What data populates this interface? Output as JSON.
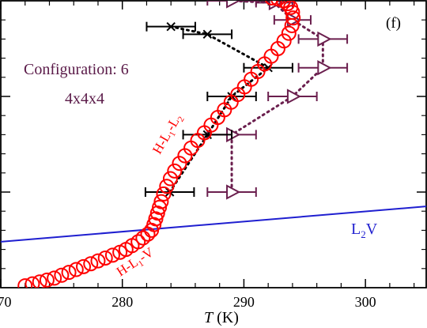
{
  "chart_data": {
    "type": "scatter",
    "panel_label": "(f)",
    "xlabel_italic": "T",
    "xlabel_unit": " (K)",
    "xlim": [
      270,
      305
    ],
    "ylim": [
      0,
      3
    ],
    "x_ticks": [
      270,
      280,
      290,
      300
    ],
    "y_major_ticks": [
      1,
      2
    ],
    "y_tick_labels_shown": false,
    "annotations": {
      "config_line1": "Configuration: 6",
      "config_line2": "4x4x4",
      "l2v": {
        "main": "L",
        "sub": "2",
        "tail": "V"
      },
      "hl1v": {
        "a": "H-L",
        "sub1": "1",
        "b": "-V"
      },
      "hl1l2": {
        "a": "H-L",
        "sub1": "1",
        "b": "-L",
        "sub2": "2"
      }
    },
    "colors": {
      "red_series": "#ff0000",
      "blue_line": "#1f1fd0",
      "black_series": "#000000",
      "purple_series": "#6b1f4e",
      "config_text": "#5a1a48",
      "axis": "#000000"
    },
    "series": [
      {
        "marker": "open-circle",
        "color": "#ff0000",
        "points": [
          [
            272.0,
            0.02
          ],
          [
            272.6,
            0.04
          ],
          [
            273.2,
            0.06
          ],
          [
            273.8,
            0.08
          ],
          [
            274.4,
            0.1
          ],
          [
            275.0,
            0.13
          ],
          [
            275.6,
            0.16
          ],
          [
            276.2,
            0.19
          ],
          [
            276.8,
            0.22
          ],
          [
            277.4,
            0.25
          ],
          [
            278.0,
            0.28
          ],
          [
            278.6,
            0.31
          ],
          [
            279.2,
            0.34
          ],
          [
            279.8,
            0.37
          ],
          [
            280.3,
            0.4
          ],
          [
            280.8,
            0.44
          ],
          [
            281.3,
            0.48
          ],
          [
            281.7,
            0.52
          ],
          [
            282.1,
            0.56
          ],
          [
            282.4,
            0.6
          ],
          [
            282.6,
            0.66
          ],
          [
            282.75,
            0.72
          ],
          [
            282.9,
            0.78
          ],
          [
            283.05,
            0.84
          ],
          [
            283.2,
            0.9
          ],
          [
            283.4,
            0.98
          ],
          [
            283.65,
            1.06
          ],
          [
            283.95,
            1.14
          ],
          [
            284.3,
            1.22
          ],
          [
            284.7,
            1.3
          ],
          [
            285.15,
            1.38
          ],
          [
            285.65,
            1.46
          ],
          [
            286.2,
            1.54
          ],
          [
            286.75,
            1.62
          ],
          [
            287.3,
            1.7
          ],
          [
            287.85,
            1.78
          ],
          [
            288.4,
            1.86
          ],
          [
            288.95,
            1.94
          ],
          [
            289.5,
            2.02
          ],
          [
            290.05,
            2.1
          ],
          [
            290.6,
            2.18
          ],
          [
            291.15,
            2.26
          ],
          [
            291.7,
            2.34
          ],
          [
            292.25,
            2.42
          ],
          [
            292.8,
            2.5
          ],
          [
            293.3,
            2.58
          ],
          [
            293.7,
            2.66
          ],
          [
            293.95,
            2.74
          ],
          [
            294.05,
            2.82
          ],
          [
            294.0,
            2.88
          ],
          [
            293.85,
            2.93
          ],
          [
            293.6,
            2.97
          ],
          [
            293.25,
            3.0
          ],
          [
            292.8,
            3.02
          ],
          [
            292.3,
            3.03
          ]
        ]
      },
      {
        "marker": "x-with-xerror",
        "color": "#000000",
        "points": [
          {
            "x": 283.9,
            "y": 1.0,
            "xerr": 2.0
          },
          {
            "x": 287.0,
            "y": 1.6,
            "xerr": 2.0
          },
          {
            "x": 289.0,
            "y": 2.0,
            "xerr": 2.0
          },
          {
            "x": 292.0,
            "y": 2.3,
            "xerr": 2.0
          },
          {
            "x": 287.0,
            "y": 2.65,
            "xerr": 2.0
          },
          {
            "x": 284.0,
            "y": 2.73,
            "xerr": 2.0
          }
        ]
      },
      {
        "marker": "open-triangle-right-with-xerror",
        "color": "#6b1f4e",
        "points": [
          {
            "x": 289.0,
            "y": 1.0,
            "xerr": 2.0
          },
          {
            "x": 289.0,
            "y": 1.6,
            "xerr": 2.0
          },
          {
            "x": 294.0,
            "y": 2.0,
            "xerr": 2.0
          },
          {
            "x": 296.5,
            "y": 2.3,
            "xerr": 2.0
          },
          {
            "x": 296.5,
            "y": 2.6,
            "xerr": 2.0
          },
          {
            "x": 294.0,
            "y": 2.8,
            "xerr": 1.5
          },
          {
            "x": 292.5,
            "y": 2.98,
            "xerr": 1.5
          },
          {
            "x": 289.0,
            "y": 3.0,
            "xerr": 2.0
          }
        ]
      },
      {
        "marker": "line",
        "color": "#1f1fd0",
        "points": [
          [
            270,
            0.48
          ],
          [
            305,
            0.85
          ]
        ]
      }
    ]
  }
}
